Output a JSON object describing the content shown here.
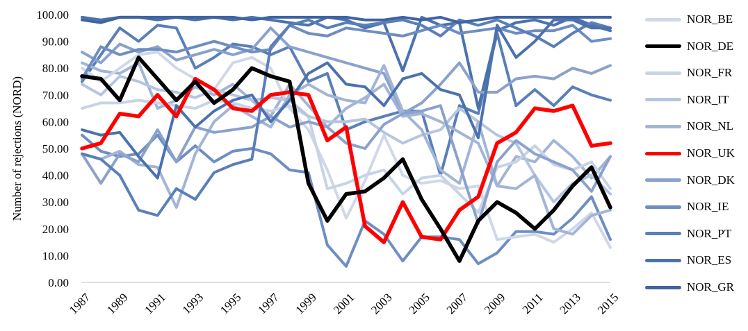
{
  "chart_data": {
    "type": "line",
    "title": "",
    "xlabel": "",
    "ylabel": "Number of rejections (NORD)",
    "ylim": [
      0,
      100
    ],
    "y_ticks": [
      "0.00",
      "10.00",
      "20.00",
      "30.00",
      "40.00",
      "50.00",
      "60.00",
      "70.00",
      "80.00",
      "90.00",
      "100.00"
    ],
    "x": [
      1987,
      1988,
      1989,
      1990,
      1991,
      1992,
      1993,
      1994,
      1995,
      1996,
      1997,
      1998,
      1999,
      2000,
      2001,
      2002,
      2003,
      2004,
      2005,
      2006,
      2007,
      2008,
      2009,
      2010,
      2011,
      2012,
      2013,
      2014,
      2015
    ],
    "x_ticks": [
      "1987",
      "1989",
      "1991",
      "1993",
      "1995",
      "1997",
      "1999",
      "2001",
      "2003",
      "2005",
      "2007",
      "2009",
      "2011",
      "2013",
      "2015"
    ],
    "grid": false,
    "legend_position": "right",
    "series": [
      {
        "name": "NOR_BE",
        "color": "#d0d8e8",
        "values": [
          80,
          75,
          80,
          85,
          86,
          80,
          76,
          72,
          82,
          84,
          80,
          65,
          57,
          42,
          24,
          38,
          55,
          40,
          37,
          38,
          35,
          36,
          16,
          17,
          18,
          15,
          20,
          26,
          13
        ]
      },
      {
        "name": "NOR_DE",
        "color": "#000000",
        "values": [
          77,
          76,
          68,
          84,
          76,
          68,
          75,
          67,
          72,
          80,
          77,
          75,
          37,
          23,
          33,
          34,
          39,
          46,
          31,
          20,
          8,
          23,
          30,
          26,
          20,
          27,
          36,
          43,
          28
        ]
      },
      {
        "name": "NOR_FR",
        "color": "#c8d3e6",
        "values": [
          65,
          67,
          67,
          68,
          67,
          66,
          65,
          68,
          67,
          65,
          64,
          66,
          62,
          35,
          37,
          40,
          42,
          33,
          39,
          40,
          33,
          26,
          43,
          45,
          51,
          44,
          42,
          45,
          35
        ]
      },
      {
        "name": "NOR_IT",
        "color": "#b6c5df",
        "values": [
          74,
          70,
          77,
          75,
          72,
          71,
          69,
          72,
          70,
          68,
          69,
          68,
          62,
          60,
          60,
          61,
          56,
          52,
          55,
          57,
          65,
          60,
          55,
          52,
          40,
          30,
          37,
          40,
          33
        ]
      },
      {
        "name": "NOR_NL",
        "color": "#a2b5d7",
        "values": [
          48,
          46,
          49,
          44,
          43,
          28,
          48,
          60,
          66,
          62,
          58,
          70,
          74,
          70,
          68,
          67,
          81,
          64,
          57,
          42,
          37,
          60,
          36,
          35,
          40,
          20,
          18,
          25,
          27
        ]
      },
      {
        "name": "NOR_UK",
        "color": "#ff0000",
        "values": [
          50,
          52,
          63,
          62,
          70,
          62,
          76,
          72,
          65,
          64,
          70,
          71,
          70,
          53,
          58,
          21,
          15,
          30,
          17,
          16,
          27,
          32,
          52,
          56,
          65,
          64,
          66,
          51,
          52
        ]
      },
      {
        "name": "NOR_DK",
        "color": "#8aa2cc",
        "values": [
          48,
          37,
          48,
          45,
          57,
          45,
          58,
          56,
          57,
          58,
          62,
          58,
          60,
          58,
          52,
          50,
          59,
          63,
          64,
          66,
          44,
          22,
          45,
          53,
          48,
          45,
          42,
          34,
          47
        ]
      },
      {
        "name": "NOR_IE",
        "color": "#6e8ec3",
        "values": [
          76,
          88,
          85,
          87,
          87,
          86,
          88,
          90,
          88,
          86,
          87,
          96,
          93,
          92,
          95,
          94,
          93,
          92,
          94,
          96,
          93,
          94,
          95,
          93,
          94,
          94,
          96,
          90,
          91
        ]
      },
      {
        "name": "NOR_PT",
        "color": "#5a7fb8",
        "values": [
          48,
          46,
          40,
          27,
          25,
          35,
          31,
          41,
          44,
          46,
          88,
          96,
          98,
          95,
          97,
          96,
          97,
          98,
          96,
          92,
          98,
          96,
          98,
          95,
          92,
          88,
          93,
          97,
          95
        ]
      },
      {
        "name": "NOR_ES",
        "color": "#4b72ae",
        "values": [
          57,
          55,
          56,
          47,
          39,
          66,
          58,
          64,
          68,
          70,
          60,
          68,
          78,
          82,
          74,
          73,
          66,
          76,
          78,
          72,
          70,
          54,
          96,
          84,
          90,
          98,
          98,
          95,
          95
        ]
      },
      {
        "name": "NOR_GR",
        "color": "#3f64a0",
        "values": [
          98,
          97,
          99,
          99,
          99,
          99,
          99,
          99,
          99,
          98,
          99,
          99,
          99,
          99,
          99,
          98,
          98,
          99,
          98,
          99,
          97,
          98,
          99,
          99,
          99,
          99,
          99,
          99,
          99
        ]
      }
    ],
    "extra_lines": [
      {
        "color": "#5a7fb8",
        "values": [
          75,
          85,
          95,
          90,
          96,
          95,
          80,
          84,
          89,
          88,
          85,
          88,
          75,
          78,
          57,
          60,
          62,
          64,
          64,
          40,
          66,
          63,
          93,
          66,
          72,
          66,
          73,
          70,
          68
        ]
      },
      {
        "color": "#4b72ae",
        "values": [
          99,
          98,
          99,
          99,
          98,
          99,
          98,
          99,
          98,
          99,
          98,
          97,
          96,
          99,
          98,
          95,
          97,
          79,
          99,
          96,
          97,
          65,
          94,
          97,
          98,
          96,
          99,
          96,
          94
        ]
      },
      {
        "color": "#6e8ec3",
        "values": [
          55,
          49,
          47,
          48,
          55,
          45,
          51,
          45,
          49,
          50,
          48,
          42,
          41,
          14,
          6,
          23,
          18,
          8,
          17,
          17,
          16,
          7,
          11,
          19,
          19,
          18,
          24,
          32,
          16
        ]
      },
      {
        "color": "#8aa2cc",
        "values": [
          86,
          82,
          89,
          86,
          88,
          83,
          85,
          87,
          85,
          87,
          95,
          88,
          86,
          84,
          82,
          80,
          78,
          63,
          67,
          74,
          82,
          71,
          71,
          76,
          77,
          76,
          80,
          78,
          81
        ]
      },
      {
        "color": "#a2b5d7",
        "values": [
          82,
          79,
          78,
          82,
          65,
          68,
          73,
          70,
          74,
          68,
          62,
          74,
          66,
          58,
          65,
          69,
          74,
          62,
          63,
          60,
          56,
          52,
          36,
          47,
          45,
          53,
          47,
          39,
          47
        ]
      }
    ]
  },
  "legend": [
    {
      "label": "NOR_BE"
    },
    {
      "label": "NOR_DE"
    },
    {
      "label": "NOR_FR"
    },
    {
      "label": "NOR_IT"
    },
    {
      "label": "NOR_NL"
    },
    {
      "label": "NOR_UK"
    },
    {
      "label": "NOR_DK"
    },
    {
      "label": "NOR_IE"
    },
    {
      "label": "NOR_PT"
    },
    {
      "label": "NOR_ES"
    },
    {
      "label": "NOR_GR"
    }
  ]
}
